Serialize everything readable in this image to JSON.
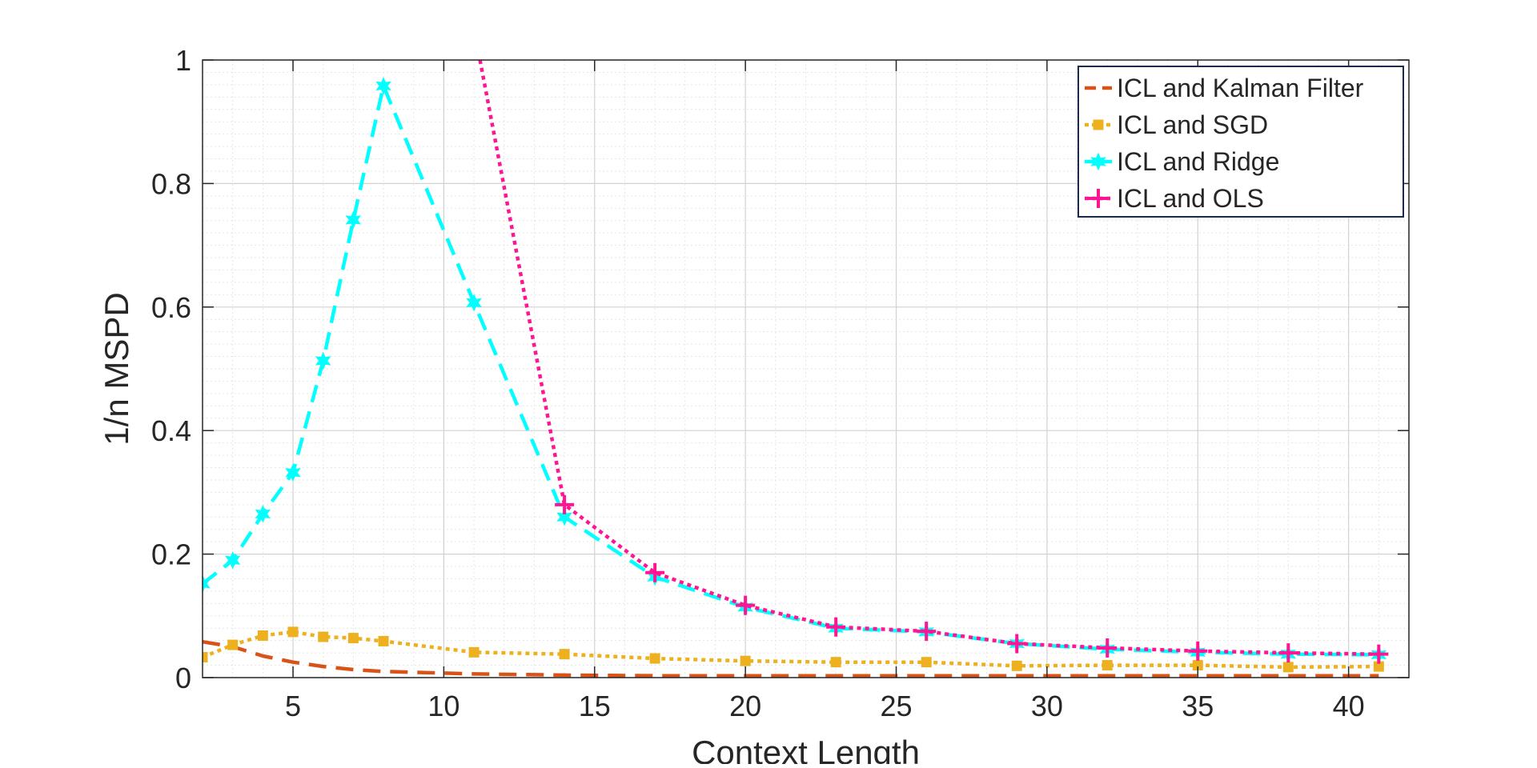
{
  "chart_data": {
    "type": "line",
    "title": "",
    "xlabel": "Context Length",
    "ylabel": "1/n MSPD",
    "xlim": [
      2,
      42
    ],
    "ylim": [
      0,
      1
    ],
    "xticks": [
      5,
      10,
      15,
      20,
      25,
      30,
      35,
      40
    ],
    "yticks": [
      0,
      0.2,
      0.4,
      0.6,
      0.8,
      1
    ],
    "ytick_labels": [
      "0",
      "0.2",
      "0.4",
      "0.6",
      "0.8",
      "1"
    ],
    "grid": true,
    "minor_grid": true,
    "legend_position": "top-right",
    "series": [
      {
        "name": "ICL and Kalman Filter",
        "color": "#D95319",
        "line_style": "dashed",
        "marker": "none",
        "x": [
          2,
          3,
          4,
          5,
          6,
          7,
          8,
          11,
          14,
          17,
          20,
          23,
          26,
          29,
          32,
          35,
          38,
          41
        ],
        "y": [
          0.058,
          0.05,
          0.035,
          0.025,
          0.018,
          0.013,
          0.01,
          0.006,
          0.004,
          0.003,
          0.003,
          0.003,
          0.003,
          0.003,
          0.003,
          0.003,
          0.003,
          0.003
        ]
      },
      {
        "name": "ICL and SGD",
        "color": "#EDB120",
        "line_style": "dotted",
        "marker": "square",
        "x": [
          2,
          3,
          4,
          5,
          6,
          7,
          8,
          11,
          14,
          17,
          20,
          23,
          26,
          29,
          32,
          35,
          38,
          41
        ],
        "y": [
          0.033,
          0.053,
          0.068,
          0.074,
          0.066,
          0.064,
          0.059,
          0.041,
          0.038,
          0.031,
          0.027,
          0.025,
          0.025,
          0.019,
          0.02,
          0.02,
          0.017,
          0.018
        ]
      },
      {
        "name": "ICL and Ridge",
        "color": "#00FFFF",
        "line_style": "dashed",
        "marker": "hexagram",
        "x": [
          2,
          3,
          4,
          5,
          6,
          7,
          8,
          11,
          14,
          17,
          20,
          23,
          26,
          29,
          32,
          35,
          38,
          41
        ],
        "y": [
          0.152,
          0.19,
          0.265,
          0.332,
          0.513,
          0.741,
          0.958,
          0.607,
          0.26,
          0.163,
          0.114,
          0.08,
          0.074,
          0.055,
          0.046,
          0.041,
          0.038,
          0.037
        ]
      },
      {
        "name": "ICL and OLS",
        "color": "#FF1493",
        "line_style": "dotted",
        "marker": "plus",
        "x": [
          11.2,
          14,
          17,
          20,
          23,
          26,
          29,
          32,
          35,
          38,
          41
        ],
        "y": [
          1.0,
          0.28,
          0.17,
          0.117,
          0.082,
          0.075,
          0.055,
          0.048,
          0.043,
          0.04,
          0.038
        ]
      }
    ]
  }
}
